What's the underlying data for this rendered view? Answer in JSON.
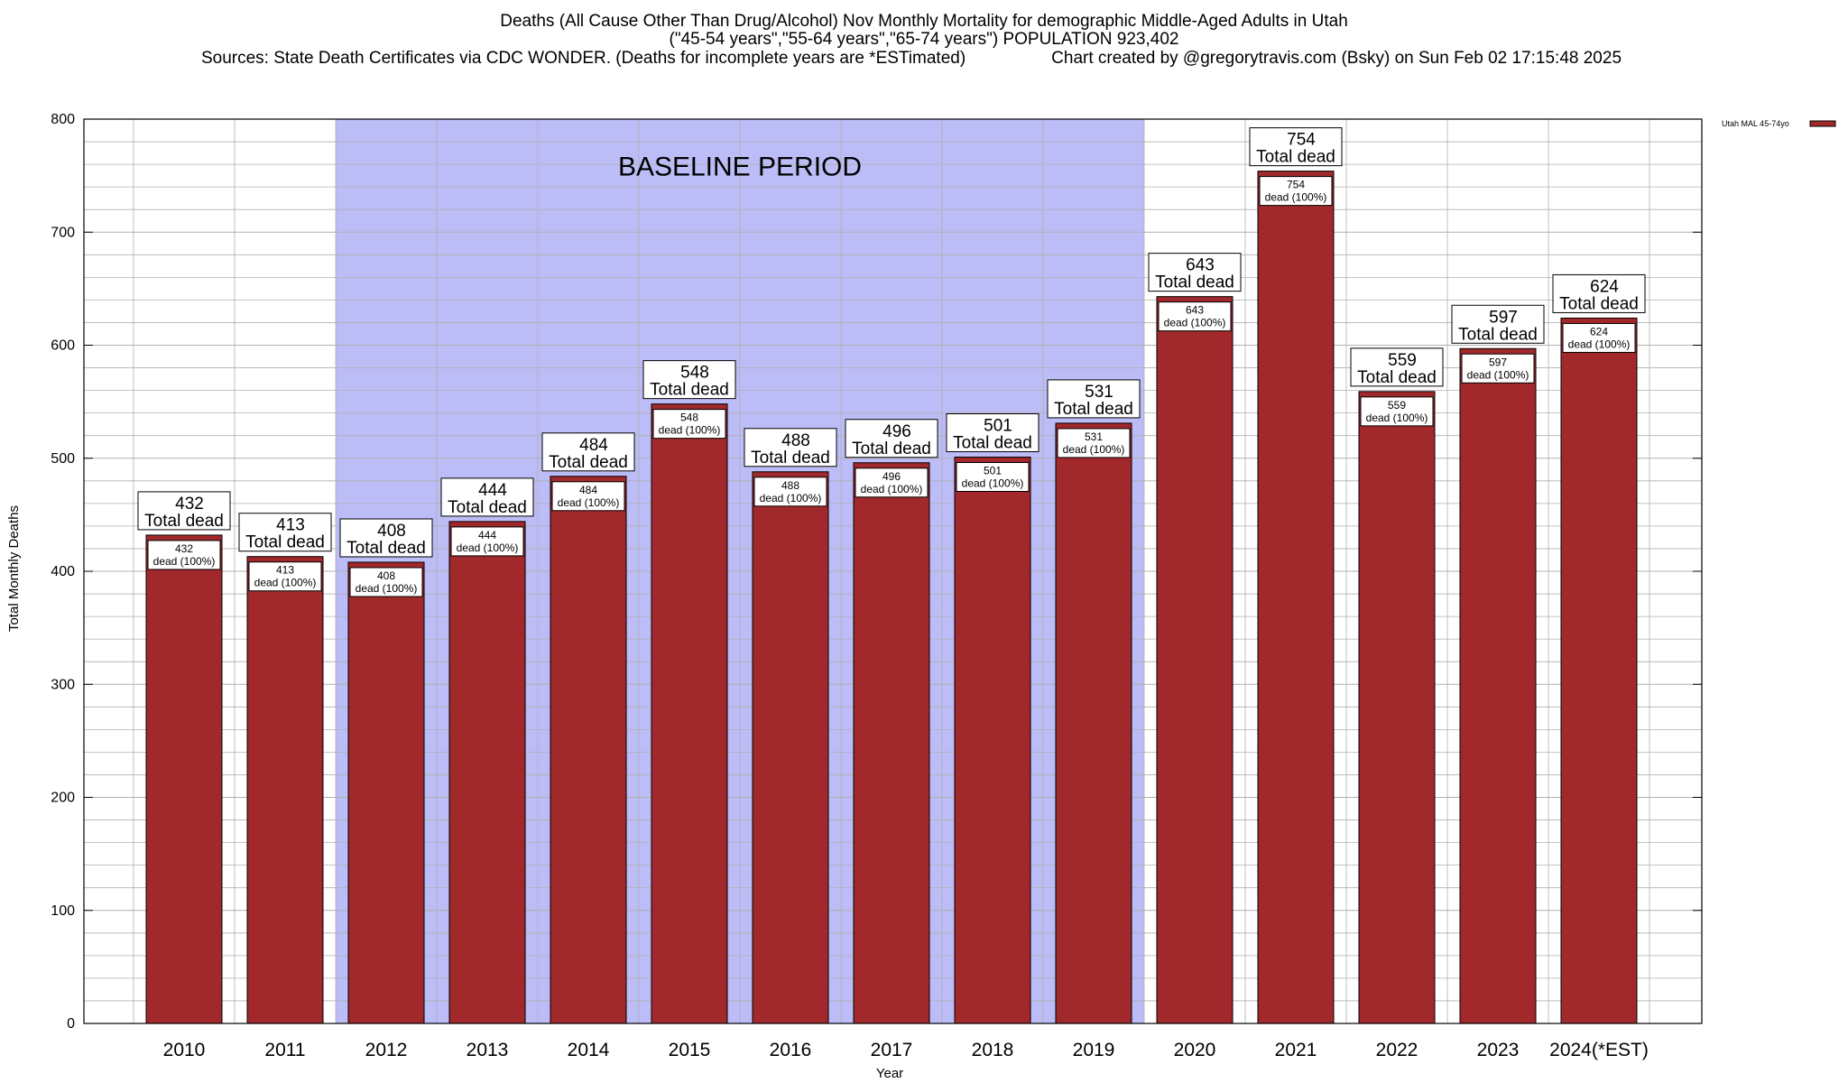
{
  "chart_data": {
    "type": "bar",
    "title": "Deaths (All Cause Other Than Drug/Alcohol) Nov Monthly Mortality for demographic Middle-Aged Adults in Utah",
    "subtitle": "(\"45-54 years\",\"55-64 years\",\"65-74 years\") POPULATION 923,402",
    "source_line_left": "Sources: State Death Certificates via CDC WONDER. (Deaths for incomplete years are *ESTimated)",
    "source_line_right": "Chart created by @gregorytravis.com (Bsky) on Sun Feb 02 17:15:48 2025",
    "xlabel": "Year",
    "ylabel": "Total Monthly Deaths",
    "ylim": [
      0,
      800
    ],
    "yticks": [
      0,
      100,
      200,
      300,
      400,
      500,
      600,
      700,
      800
    ],
    "grid": true,
    "legend": {
      "placement": "top-right",
      "entries": [
        "Utah MAL 45-74yo"
      ]
    },
    "baseline_annotation": {
      "text": "BASELINE PERIOD",
      "start": "2012",
      "end": "2019"
    },
    "categories": [
      "2010",
      "2011",
      "2012",
      "2013",
      "2014",
      "2015",
      "2016",
      "2017",
      "2018",
      "2019",
      "2020",
      "2021",
      "2022",
      "2023",
      "2024(*EST)"
    ],
    "series": [
      {
        "name": "Utah MAL 45-74yo",
        "values": [
          432,
          413,
          408,
          444,
          484,
          548,
          488,
          496,
          501,
          531,
          643,
          754,
          559,
          597,
          624
        ]
      }
    ],
    "top_label_suffix": "Total dead",
    "inner_label_suffix": "dead (100%)"
  },
  "colors": {
    "bar": "#a1282b",
    "baseline_band": "#bcbcf7",
    "grid": "#b0b0b0",
    "axis": "#000000"
  }
}
